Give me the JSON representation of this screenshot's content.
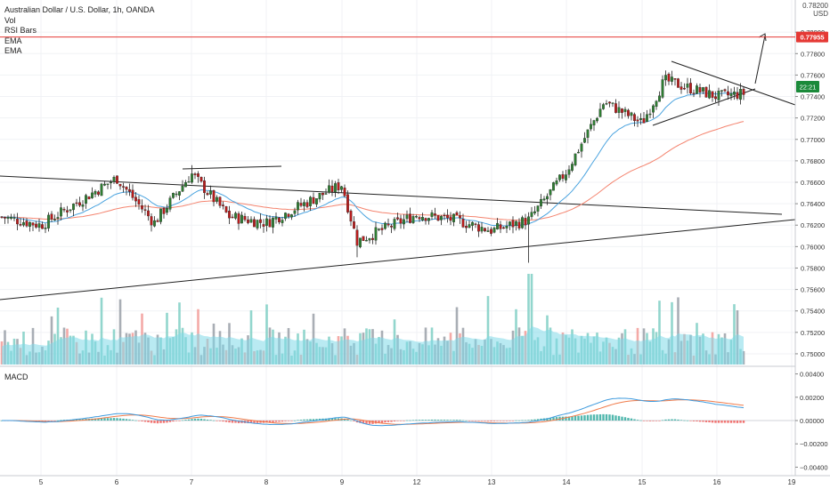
{
  "legend": {
    "title": "Australian Dollar / U.S. Dollar, 1h, OANDA",
    "lines": [
      "Vol",
      "RSI Bars",
      "EMA",
      "EMA"
    ],
    "macd": "MACD"
  },
  "price_axis": {
    "currency_lines": [
      "0.78200",
      "USD"
    ],
    "ticks": [
      "0.78000",
      "0.77800",
      "0.77600",
      "0.77400",
      "0.77200",
      "0.77000",
      "0.76800",
      "0.76600",
      "0.76400",
      "0.76200",
      "0.76000",
      "0.75800",
      "0.75600",
      "0.75400",
      "0.75200",
      "0.75000"
    ],
    "resistance_label": "0.77955",
    "timer_label": "22:21"
  },
  "macd_axis": {
    "ticks": [
      "0.00400",
      "0.00200",
      "0.00000",
      "−0.00200",
      "−0.00400"
    ]
  },
  "time_axis": {
    "ticks": [
      "5",
      "6",
      "7",
      "8",
      "9",
      "12",
      "13",
      "14",
      "15",
      "16",
      "19"
    ]
  },
  "colors": {
    "up": "#26a69a",
    "down": "#ef5350",
    "candle_up_body": "#2e7d32",
    "candle_down_body": "#b71c1c",
    "ema_fast": "#4aa3df",
    "ema_slow": "#f4846f",
    "resistance": "#e53935",
    "timer": "#1b8a3a",
    "volume_ma": "#7fd8e8"
  },
  "chart_data": {
    "type": "candlestick",
    "title": "Australian Dollar / U.S. Dollar, 1h, OANDA",
    "x_ticks": [
      "5",
      "6",
      "7",
      "8",
      "9",
      "12",
      "13",
      "14",
      "15",
      "16",
      "19"
    ],
    "y_range": [
      0.749,
      0.783
    ],
    "resistance_level": 0.77955,
    "price_path": [
      {
        "x": "5",
        "close": 0.762
      },
      {
        "x": "6",
        "close": 0.7664
      },
      {
        "x": "6.5",
        "close": 0.7622
      },
      {
        "x": "7",
        "close": 0.7668
      },
      {
        "x": "7.5",
        "close": 0.7628
      },
      {
        "x": "8",
        "close": 0.7622
      },
      {
        "x": "9",
        "close": 0.7658
      },
      {
        "x": "9.2",
        "close": 0.7605
      },
      {
        "x": "12",
        "close": 0.763
      },
      {
        "x": "12.5",
        "close": 0.7625
      },
      {
        "x": "13",
        "close": 0.7615
      },
      {
        "x": "13.5",
        "close": 0.7625
      },
      {
        "x": "14",
        "close": 0.767
      },
      {
        "x": "14.5",
        "close": 0.7735
      },
      {
        "x": "15",
        "close": 0.7715
      },
      {
        "x": "15.3",
        "close": 0.7755
      },
      {
        "x": "16",
        "close": 0.774
      }
    ],
    "ema_fast_end": 0.7722,
    "ema_slow_end": 0.767,
    "macd_range": [
      -0.0045,
      0.0045
    ],
    "macd_peak": 0.0025,
    "macd_end": 0.0005
  }
}
